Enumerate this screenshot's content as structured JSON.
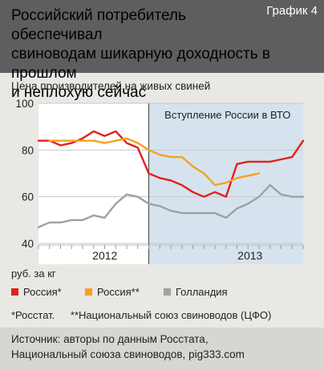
{
  "figure": {
    "title": "Российский потребитель обеспечивал\nсвиноводам шикарную доходность в прошлом\nи неплохую сейчас",
    "tag": "График 4",
    "units": "руб. за кг",
    "notes": [
      "*Росстат.",
      "**Национальный союз свиноводов (ЦФО)"
    ],
    "source": "Источник: авторы по данным Росстата,\nНациональный союза свиноводов, pig333.com"
  },
  "colors": {
    "header_bg": "#5d5e60",
    "plot_bg": "#ffffff",
    "shade_bg": "#d6e3ef",
    "russia_rosstat": "#e0211c",
    "russia_union": "#f5a21d",
    "netherlands": "#9fa0a2",
    "divider": "#555555"
  },
  "chart_data": {
    "type": "line",
    "title": "Цена производителей на живых свиней",
    "xlabel": "",
    "ylabel": "",
    "ylim": [
      40,
      100
    ],
    "yticks": [
      40,
      60,
      80,
      100
    ],
    "x_ticks": [
      "2012",
      "2013"
    ],
    "x": [
      0,
      1,
      2,
      3,
      4,
      5,
      6,
      7,
      8,
      9,
      10,
      11,
      12,
      13,
      14,
      15,
      16,
      17,
      18,
      19,
      20,
      21,
      22,
      23,
      24
    ],
    "grid": true,
    "annotation": {
      "text": "Вступление России в ВТО",
      "from_x": 10
    },
    "series": [
      {
        "name": "Россия*",
        "color_key": "russia_rosstat",
        "values": [
          84,
          84,
          82,
          83,
          85,
          88,
          86,
          88,
          83,
          81,
          70,
          68,
          67,
          65,
          62,
          60,
          62,
          60,
          74,
          75,
          75,
          75,
          76,
          77,
          84
        ]
      },
      {
        "name": "Россия**",
        "color_key": "russia_union",
        "values": [
          null,
          84,
          84,
          84,
          84,
          84,
          83,
          84,
          85,
          83,
          80,
          78,
          77,
          77,
          73,
          70,
          65,
          66,
          68,
          69,
          70,
          null,
          null,
          null,
          null
        ]
      },
      {
        "name": "Голландия",
        "color_key": "netherlands",
        "values": [
          47,
          49,
          49,
          50,
          50,
          52,
          51,
          57,
          61,
          60,
          57,
          56,
          54,
          53,
          53,
          53,
          53,
          51,
          55,
          57,
          60,
          65,
          61,
          60,
          60
        ]
      }
    ]
  }
}
